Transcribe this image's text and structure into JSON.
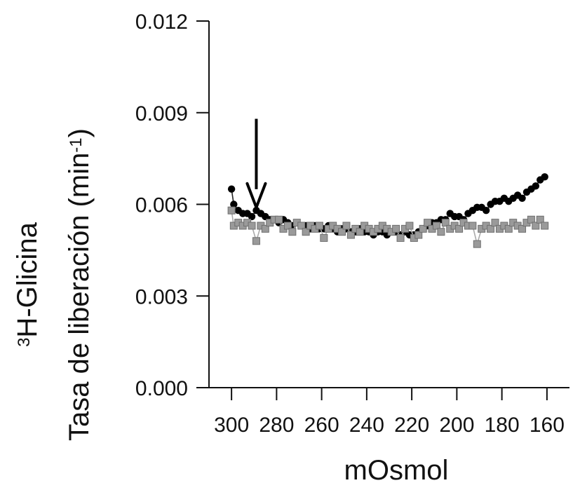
{
  "chart_data": {
    "type": "line",
    "xlabel": "mOsmol",
    "ylabel": {
      "line1_sup": "3",
      "line1_text": "H-Glicina",
      "line2_text": "Tasa de liberación (min",
      "line2_sup": "-1",
      "line2_close": ")"
    },
    "x_reversed": true,
    "xlim": [
      310,
      150
    ],
    "ylim": [
      0.0,
      0.012
    ],
    "xticks": [
      300,
      280,
      260,
      240,
      220,
      200,
      180,
      160
    ],
    "xtick_labels": [
      "300",
      "280",
      "260",
      "240",
      "220",
      "200",
      "180",
      "160"
    ],
    "yticks": [
      0.0,
      0.003,
      0.006,
      0.009,
      0.012
    ],
    "ytick_labels": [
      "0.000",
      "0.003",
      "0.006",
      "0.009",
      "0.012"
    ],
    "annotation": {
      "type": "arrow",
      "x": 289,
      "y_top": 0.0088,
      "y_bottom": 0.0059
    },
    "series": [
      {
        "marker": "circle",
        "color": "#000000",
        "x": [
          300,
          299,
          297,
          295,
          293,
          291,
          289,
          287,
          285,
          283,
          281,
          279,
          277,
          275,
          273,
          271,
          269,
          267,
          265,
          263,
          261,
          259,
          257,
          255,
          253,
          251,
          249,
          247,
          245,
          243,
          241,
          239,
          237,
          235,
          233,
          231,
          229,
          227,
          225,
          223,
          221,
          219,
          217,
          215,
          213,
          211,
          209,
          207,
          205,
          203,
          201,
          199,
          197,
          195,
          193,
          191,
          189,
          187,
          185,
          183,
          181,
          179,
          177,
          175,
          173,
          171,
          169,
          167,
          165,
          163,
          161
        ],
        "y": [
          0.0065,
          0.006,
          0.0058,
          0.0057,
          0.0057,
          0.0056,
          0.0058,
          0.0057,
          0.0056,
          0.0055,
          0.0055,
          0.0054,
          0.0055,
          0.0054,
          0.0053,
          0.0054,
          0.0053,
          0.0053,
          0.0052,
          0.0053,
          0.0052,
          0.0052,
          0.0053,
          0.0052,
          0.0051,
          0.0052,
          0.0052,
          0.0051,
          0.0051,
          0.0052,
          0.0051,
          0.0051,
          0.005,
          0.0051,
          0.0051,
          0.005,
          0.0051,
          0.0051,
          0.005,
          0.0051,
          0.005,
          0.005,
          0.0051,
          0.0052,
          0.0053,
          0.0054,
          0.0054,
          0.0055,
          0.0055,
          0.0057,
          0.0056,
          0.0056,
          0.0055,
          0.0057,
          0.0058,
          0.0059,
          0.0059,
          0.0058,
          0.006,
          0.0061,
          0.0061,
          0.0062,
          0.0061,
          0.0062,
          0.0063,
          0.0062,
          0.0064,
          0.0065,
          0.0066,
          0.0068,
          0.0069
        ]
      },
      {
        "marker": "square",
        "color": "#9a9a9a",
        "x": [
          300,
          299,
          297,
          295,
          293,
          291,
          289,
          287,
          285,
          283,
          281,
          279,
          277,
          275,
          273,
          271,
          269,
          267,
          265,
          263,
          261,
          259,
          257,
          255,
          253,
          251,
          249,
          247,
          245,
          243,
          241,
          239,
          237,
          235,
          233,
          231,
          229,
          227,
          225,
          223,
          221,
          219,
          217,
          215,
          213,
          211,
          209,
          207,
          205,
          203,
          201,
          199,
          197,
          195,
          193,
          191,
          189,
          187,
          185,
          183,
          181,
          179,
          177,
          175,
          173,
          171,
          169,
          167,
          165,
          163,
          161
        ],
        "y": [
          0.0058,
          0.0053,
          0.0054,
          0.0053,
          0.0054,
          0.0053,
          0.0048,
          0.0053,
          0.0052,
          0.0054,
          0.0055,
          0.0055,
          0.0052,
          0.0053,
          0.0051,
          0.0054,
          0.0053,
          0.0051,
          0.0053,
          0.0052,
          0.0053,
          0.0049,
          0.0052,
          0.0053,
          0.0052,
          0.0051,
          0.0053,
          0.005,
          0.0052,
          0.0051,
          0.0053,
          0.0052,
          0.0051,
          0.0052,
          0.0053,
          0.0052,
          0.0051,
          0.0052,
          0.0049,
          0.0052,
          0.0053,
          0.0049,
          0.005,
          0.0052,
          0.0054,
          0.0052,
          0.0053,
          0.0051,
          0.0054,
          0.0052,
          0.0053,
          0.0052,
          0.0054,
          0.0053,
          0.0053,
          0.0047,
          0.0052,
          0.0053,
          0.0052,
          0.0054,
          0.0052,
          0.0053,
          0.0052,
          0.0054,
          0.0053,
          0.0052,
          0.0054,
          0.0055,
          0.0053,
          0.0055,
          0.0053
        ]
      }
    ]
  }
}
